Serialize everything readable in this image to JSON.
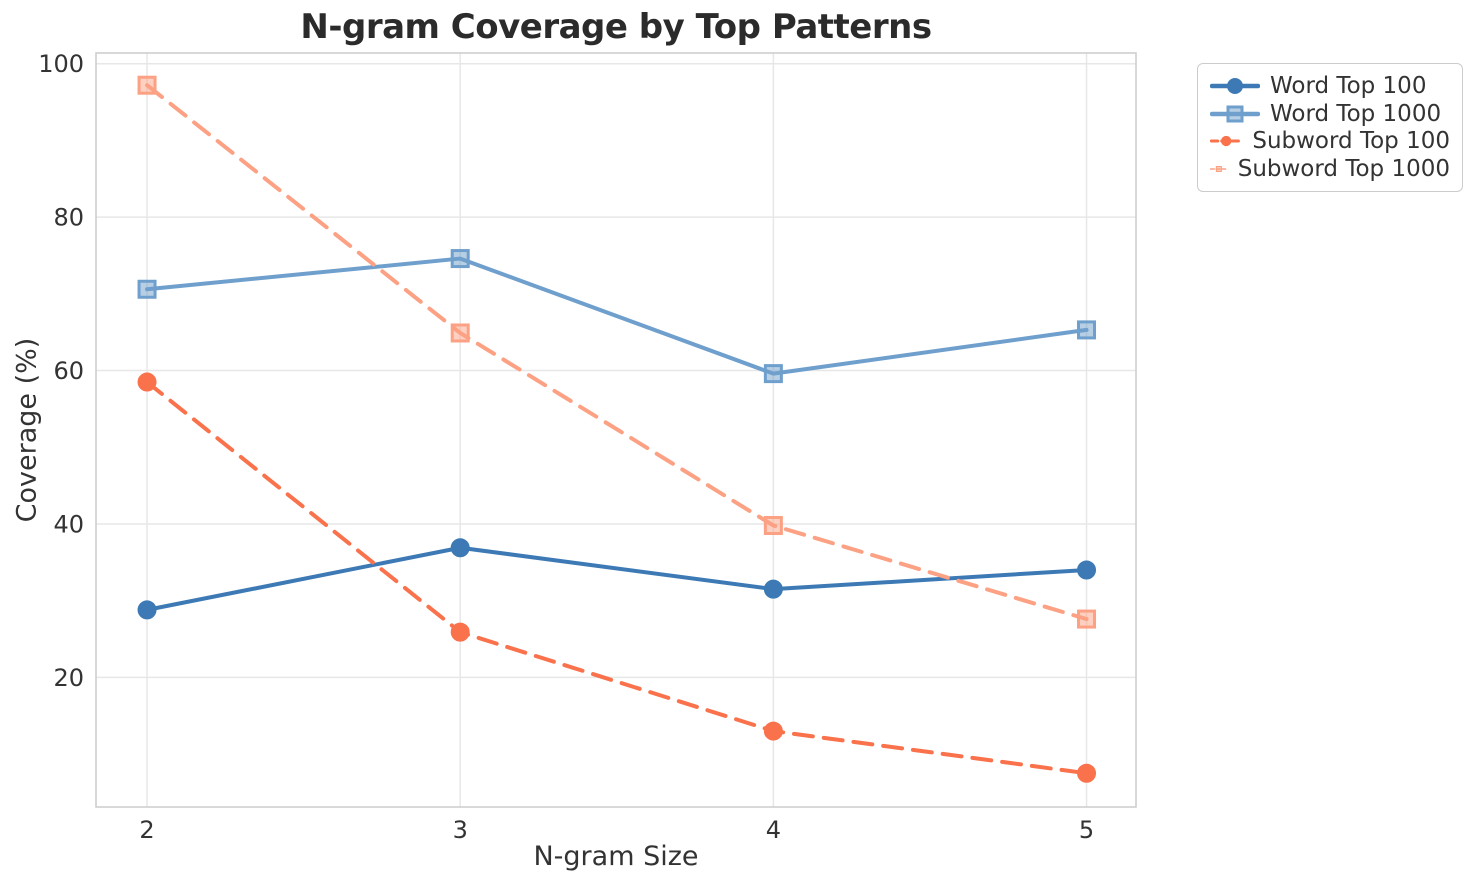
{
  "chart_data": {
    "type": "line",
    "title": "N-gram Coverage by Top Patterns",
    "xlabel": "N-gram Size",
    "ylabel": "Coverage (%)",
    "x": [
      2,
      3,
      4,
      5
    ],
    "xtick_labels": [
      "2",
      "3",
      "4",
      "5"
    ],
    "yticks": [
      20,
      40,
      60,
      80,
      100
    ],
    "ytick_labels": [
      "20",
      "40",
      "60",
      "80",
      "100"
    ],
    "xlim": [
      1.837,
      5.158
    ],
    "ylim": [
      3.1,
      101.4
    ],
    "grid": true,
    "legend_position": "outside-upper-right",
    "series": [
      {
        "name": "Word Top 100",
        "values": [
          28.8,
          36.9,
          31.5,
          34.0
        ],
        "color": "#3D7AB5",
        "line_style": "solid",
        "marker": "circle"
      },
      {
        "name": "Word Top 1000",
        "values": [
          70.6,
          74.6,
          59.6,
          65.3
        ],
        "color": "#6F9FCC",
        "line_style": "solid",
        "marker": "square"
      },
      {
        "name": "Subword Top 100",
        "values": [
          58.5,
          25.9,
          13.0,
          7.5
        ],
        "color": "#F9724C",
        "line_style": "dashed",
        "marker": "circle"
      },
      {
        "name": "Subword Top 1000",
        "values": [
          97.2,
          64.9,
          39.8,
          27.6
        ],
        "color": "#FCA183",
        "line_style": "dashed",
        "marker": "square"
      }
    ],
    "colors": {
      "background": "#FFFFFF",
      "grid": "#E7E7E7",
      "spine": "#CCCCCC",
      "tick_text": "#333333",
      "title_text": "#2B2B2B"
    }
  }
}
